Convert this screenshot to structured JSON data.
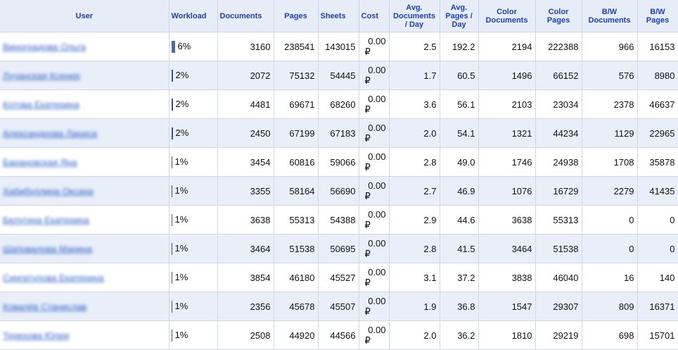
{
  "columns": [
    "User",
    "Workload",
    "Documents",
    "Pages",
    "Sheets",
    "Cost",
    "Avg. Documents / Day",
    "Avg. Pages / Day",
    "Color Documents",
    "Color Pages",
    "B/W Documents",
    "B/W Pages"
  ],
  "currency_symbol": "₽",
  "rows": [
    {
      "user": "Виноградова Ольга",
      "workload": "6%",
      "workload_value": 6,
      "documents": "3160",
      "pages": "238541",
      "sheets": "143015",
      "cost": "0.00",
      "avg_docs": "2.5",
      "avg_pages": "192.2",
      "color_docs": "2194",
      "color_pages": "222388",
      "bw_docs": "966",
      "bw_pages": "16153"
    },
    {
      "user": "Лучанская Ксения",
      "workload": "2%",
      "workload_value": 2,
      "documents": "2072",
      "pages": "75132",
      "sheets": "54445",
      "cost": "0.00",
      "avg_docs": "1.7",
      "avg_pages": "60.5",
      "color_docs": "1496",
      "color_pages": "66152",
      "bw_docs": "576",
      "bw_pages": "8980"
    },
    {
      "user": "Котова Екатерина",
      "workload": "2%",
      "workload_value": 2,
      "documents": "4481",
      "pages": "69671",
      "sheets": "68260",
      "cost": "0.00",
      "avg_docs": "3.6",
      "avg_pages": "56.1",
      "color_docs": "2103",
      "color_pages": "23034",
      "bw_docs": "2378",
      "bw_pages": "46637"
    },
    {
      "user": "Александрова Лариса",
      "workload": "2%",
      "workload_value": 2,
      "documents": "2450",
      "pages": "67199",
      "sheets": "67183",
      "cost": "0.00",
      "avg_docs": "2.0",
      "avg_pages": "54.1",
      "color_docs": "1321",
      "color_pages": "44234",
      "bw_docs": "1129",
      "bw_pages": "22965"
    },
    {
      "user": "Барановская Яна",
      "workload": "1%",
      "workload_value": 1,
      "documents": "3454",
      "pages": "60816",
      "sheets": "59066",
      "cost": "0.00",
      "avg_docs": "2.8",
      "avg_pages": "49.0",
      "color_docs": "1746",
      "color_pages": "24938",
      "bw_docs": "1708",
      "bw_pages": "35878"
    },
    {
      "user": "Хабибуллина Оксана",
      "workload": "1%",
      "workload_value": 1,
      "documents": "3355",
      "pages": "58164",
      "sheets": "56690",
      "cost": "0.00",
      "avg_docs": "2.7",
      "avg_pages": "46.9",
      "color_docs": "1076",
      "color_pages": "16729",
      "bw_docs": "2279",
      "bw_pages": "41435"
    },
    {
      "user": "Белугина Екатерина",
      "workload": "1%",
      "workload_value": 1,
      "documents": "3638",
      "pages": "55313",
      "sheets": "54388",
      "cost": "0.00",
      "avg_docs": "2.9",
      "avg_pages": "44.6",
      "color_docs": "3638",
      "color_pages": "55313",
      "bw_docs": "0",
      "bw_pages": "0"
    },
    {
      "user": "Шаповалова Марина",
      "workload": "1%",
      "workload_value": 1,
      "documents": "3464",
      "pages": "51538",
      "sheets": "50695",
      "cost": "0.00",
      "avg_docs": "2.8",
      "avg_pages": "41.5",
      "color_docs": "3464",
      "color_pages": "51538",
      "bw_docs": "0",
      "bw_pages": "0"
    },
    {
      "user": "Сингатулова Екатерина",
      "workload": "1%",
      "workload_value": 1,
      "documents": "3854",
      "pages": "46180",
      "sheets": "45527",
      "cost": "0.00",
      "avg_docs": "3.1",
      "avg_pages": "37.2",
      "color_docs": "3838",
      "color_pages": "46040",
      "bw_docs": "16",
      "bw_pages": "140"
    },
    {
      "user": "Ковалёв Станислав",
      "workload": "1%",
      "workload_value": 1,
      "documents": "2356",
      "pages": "45678",
      "sheets": "45507",
      "cost": "0.00",
      "avg_docs": "1.9",
      "avg_pages": "36.8",
      "color_docs": "1547",
      "color_pages": "29307",
      "bw_docs": "809",
      "bw_pages": "16371"
    },
    {
      "user": "Терехова Юлия",
      "workload": "1%",
      "workload_value": 1,
      "documents": "2508",
      "pages": "44920",
      "sheets": "44566",
      "cost": "0.00",
      "avg_docs": "2.0",
      "avg_pages": "36.2",
      "color_docs": "1810",
      "color_pages": "29219",
      "bw_docs": "698",
      "bw_pages": "15701"
    }
  ]
}
